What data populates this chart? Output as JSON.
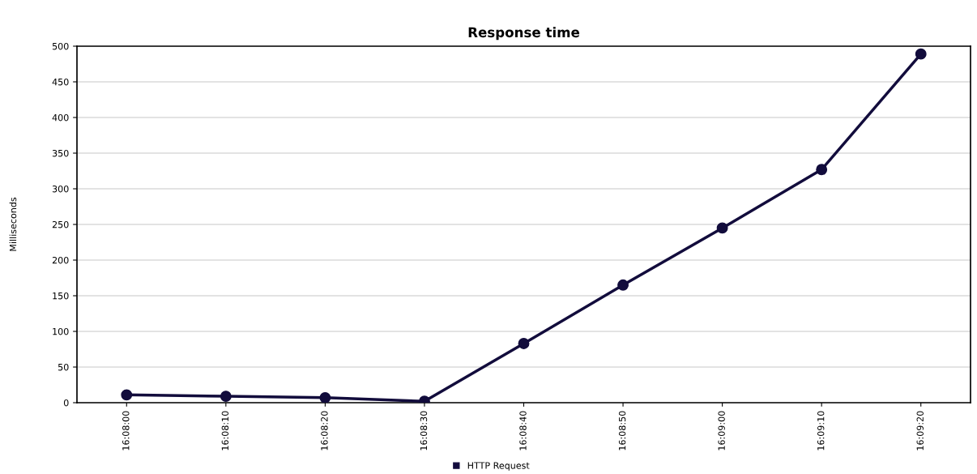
{
  "chart_data": {
    "type": "line",
    "title": "Response time",
    "ylabel": "Milliseconds",
    "categories": [
      "16:08:00",
      "16:08:10",
      "16:08:20",
      "16:08:30",
      "16:08:40",
      "16:08:50",
      "16:09:00",
      "16:09:10",
      "16:09:20"
    ],
    "series": [
      {
        "name": "HTTP Request",
        "color": "#120c3c",
        "values": [
          11,
          9,
          7,
          2,
          83,
          165,
          245,
          327,
          489
        ]
      }
    ],
    "ylim": [
      0,
      500
    ],
    "yticks": [
      0,
      50,
      100,
      150,
      200,
      250,
      300,
      350,
      400,
      450,
      500
    ],
    "grid": "y",
    "legend": "bottom",
    "marker": "circle",
    "line_style": "solid"
  }
}
